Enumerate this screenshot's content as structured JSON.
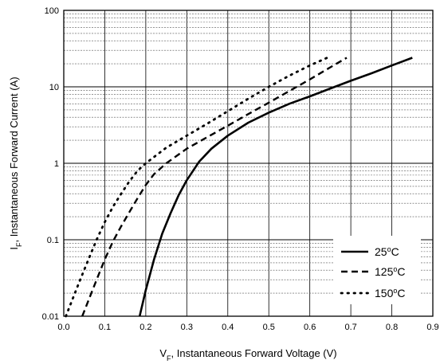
{
  "chart_data": {
    "type": "line",
    "title": "",
    "xlabel": {
      "main": "V",
      "sub": "F",
      "rest": ", Instantaneous Forward Voltage (V)"
    },
    "ylabel": {
      "main": "I",
      "sub": "F",
      "rest": ", Instantaneous Forward Current (A)"
    },
    "xlim": [
      0.0,
      0.9
    ],
    "ylim": [
      0.01,
      100
    ],
    "yscale": "log",
    "grid": true,
    "legend_position": "bottom-right",
    "x_ticks": [
      0.0,
      0.1,
      0.2,
      0.3,
      0.4,
      0.5,
      0.6,
      0.7,
      0.8,
      0.9
    ],
    "x_tick_labels": [
      "0.0",
      "0.1",
      "0.2",
      "0.3",
      "0.4",
      "0.5",
      "0.6",
      "0.7",
      "0.8",
      "0.9"
    ],
    "y_ticks": [
      0.01,
      0.1,
      1,
      10,
      100
    ],
    "y_tick_labels": [
      "0.01",
      "0.1",
      "1",
      "10",
      "100"
    ],
    "series": [
      {
        "name": "25°C",
        "label_main": "25",
        "label_sup": "o",
        "label_unit": "C",
        "style": "solid",
        "x": [
          0.185,
          0.2,
          0.22,
          0.24,
          0.26,
          0.28,
          0.3,
          0.33,
          0.36,
          0.4,
          0.45,
          0.5,
          0.55,
          0.6,
          0.65,
          0.7,
          0.75,
          0.8,
          0.85
        ],
        "y": [
          0.01,
          0.022,
          0.055,
          0.12,
          0.22,
          0.38,
          0.6,
          1.05,
          1.55,
          2.3,
          3.4,
          4.6,
          6.0,
          7.5,
          9.5,
          12.0,
          15.0,
          19.0,
          24.0
        ]
      },
      {
        "name": "125°C",
        "label_main": "125",
        "label_sup": "o",
        "label_unit": "C",
        "style": "dashed",
        "x": [
          0.045,
          0.06,
          0.08,
          0.1,
          0.12,
          0.14,
          0.16,
          0.18,
          0.2,
          0.22,
          0.25,
          0.3,
          0.35,
          0.4,
          0.45,
          0.5,
          0.55,
          0.6,
          0.65,
          0.69
        ],
        "y": [
          0.01,
          0.016,
          0.03,
          0.055,
          0.095,
          0.15,
          0.23,
          0.35,
          0.52,
          0.72,
          1.0,
          1.55,
          2.2,
          3.1,
          4.4,
          6.2,
          8.8,
          12.5,
          18.0,
          24.0
        ]
      },
      {
        "name": "150°C",
        "label_main": "150",
        "label_sup": "o",
        "label_unit": "C",
        "style": "dotted",
        "x": [
          0.005,
          0.02,
          0.04,
          0.06,
          0.08,
          0.1,
          0.12,
          0.14,
          0.16,
          0.18,
          0.2,
          0.25,
          0.3,
          0.35,
          0.4,
          0.45,
          0.5,
          0.55,
          0.6,
          0.65
        ],
        "y": [
          0.01,
          0.016,
          0.03,
          0.055,
          0.1,
          0.17,
          0.27,
          0.4,
          0.58,
          0.8,
          1.0,
          1.6,
          2.3,
          3.3,
          4.8,
          7.0,
          10.0,
          14.0,
          19.0,
          25.0
        ]
      }
    ]
  }
}
